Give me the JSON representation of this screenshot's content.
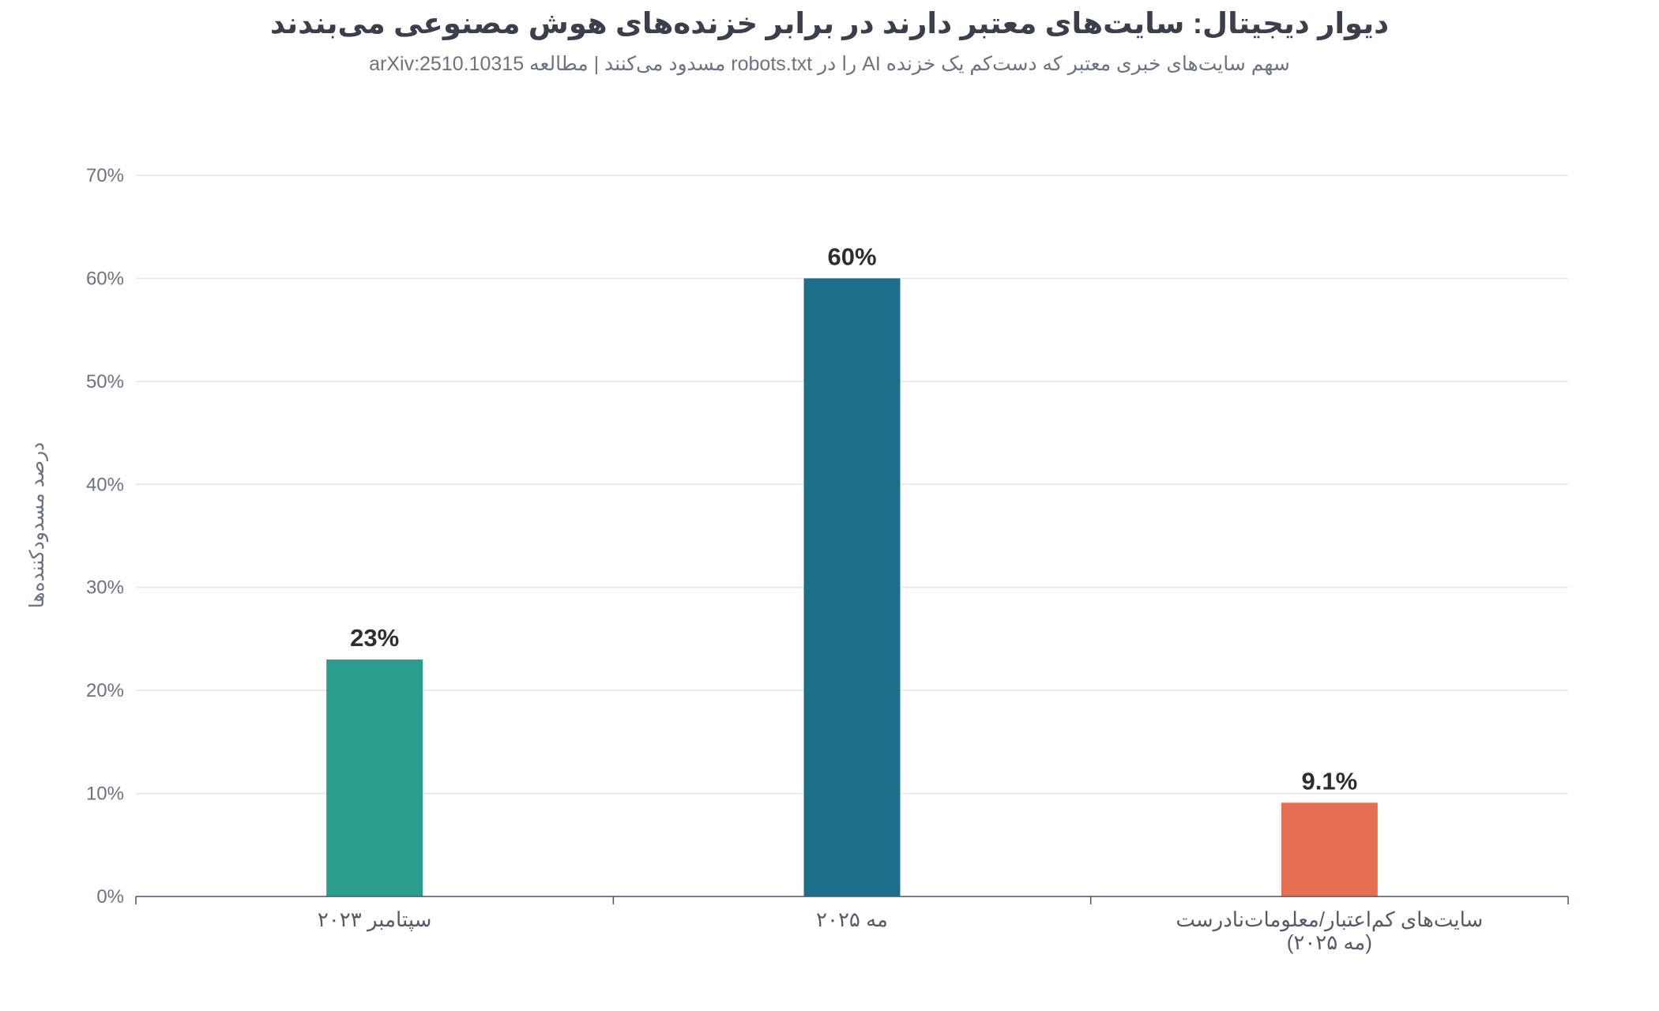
{
  "chart_data": {
    "type": "bar",
    "title": "دیوار دیجیتال: سایت‌های معتبر دارند در برابر خزنده‌های هوش مصنوعی می‌بندند",
    "subtitle": "سهم سایت‌های خبری معتبر که دست‌کم یک خزنده AI را در robots.txt مسدود می‌کنند | مطالعه arXiv:2510.10315",
    "ylabel": "درصد مسدودکننده‌ها",
    "xlabel": "",
    "categories": [
      [
        "سپتامبر ۲۰۲۳"
      ],
      [
        "مه ۲۰۲۵"
      ],
      [
        "سایت‌های کم‌اعتبار/معلومات‌نادرست",
        "(مه ۲۰۲۵)"
      ]
    ],
    "values": [
      23,
      60,
      9.1
    ],
    "value_labels": [
      "23%",
      "60%",
      "9.1%"
    ],
    "colors": [
      "#2a9d8f",
      "#1f6e89",
      "#e76f51"
    ],
    "ylim": [
      0,
      70
    ],
    "yticks": [
      0,
      10,
      20,
      30,
      40,
      50,
      60,
      70
    ],
    "ytick_suffix": "%",
    "grid": true,
    "legend": "none"
  }
}
